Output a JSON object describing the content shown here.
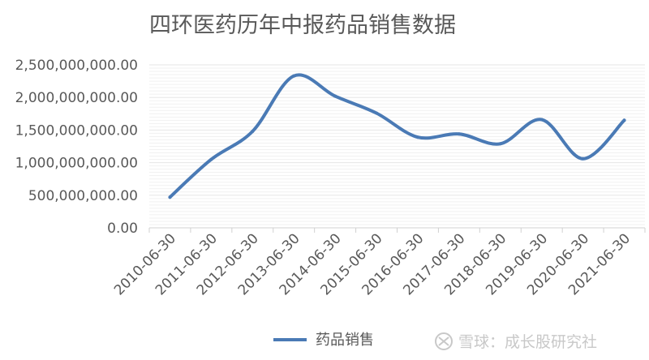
{
  "chart_data": {
    "type": "line",
    "title": "四环医药历年中报药品销售数据",
    "xlabel": "",
    "ylabel": "",
    "categories": [
      "2010-06-30",
      "2011-06-30",
      "2012-06-30",
      "2013-06-30",
      "2014-06-30",
      "2015-06-30",
      "2016-06-30",
      "2017-06-30",
      "2018-06-30",
      "2019-06-30",
      "2020-06-30",
      "2021-06-30"
    ],
    "series": [
      {
        "name": "药品销售",
        "color": "#4a7ab5",
        "values": [
          470000000,
          1050000000,
          1480000000,
          2330000000,
          2020000000,
          1760000000,
          1390000000,
          1440000000,
          1290000000,
          1660000000,
          1060000000,
          1650000000
        ]
      }
    ],
    "ylim": [
      0,
      2500000000
    ],
    "y_ticks": [
      "0.00",
      "500,000,000.00",
      "1,000,000,000.00",
      "1,500,000,000.00",
      "2,000,000,000.00",
      "2,500,000,000.00"
    ],
    "grid": true,
    "legend": "bottom-center",
    "smooth": true
  },
  "watermark": {
    "text": "雪球：成长股研究社",
    "icon": "xueqiu-logo-icon"
  }
}
